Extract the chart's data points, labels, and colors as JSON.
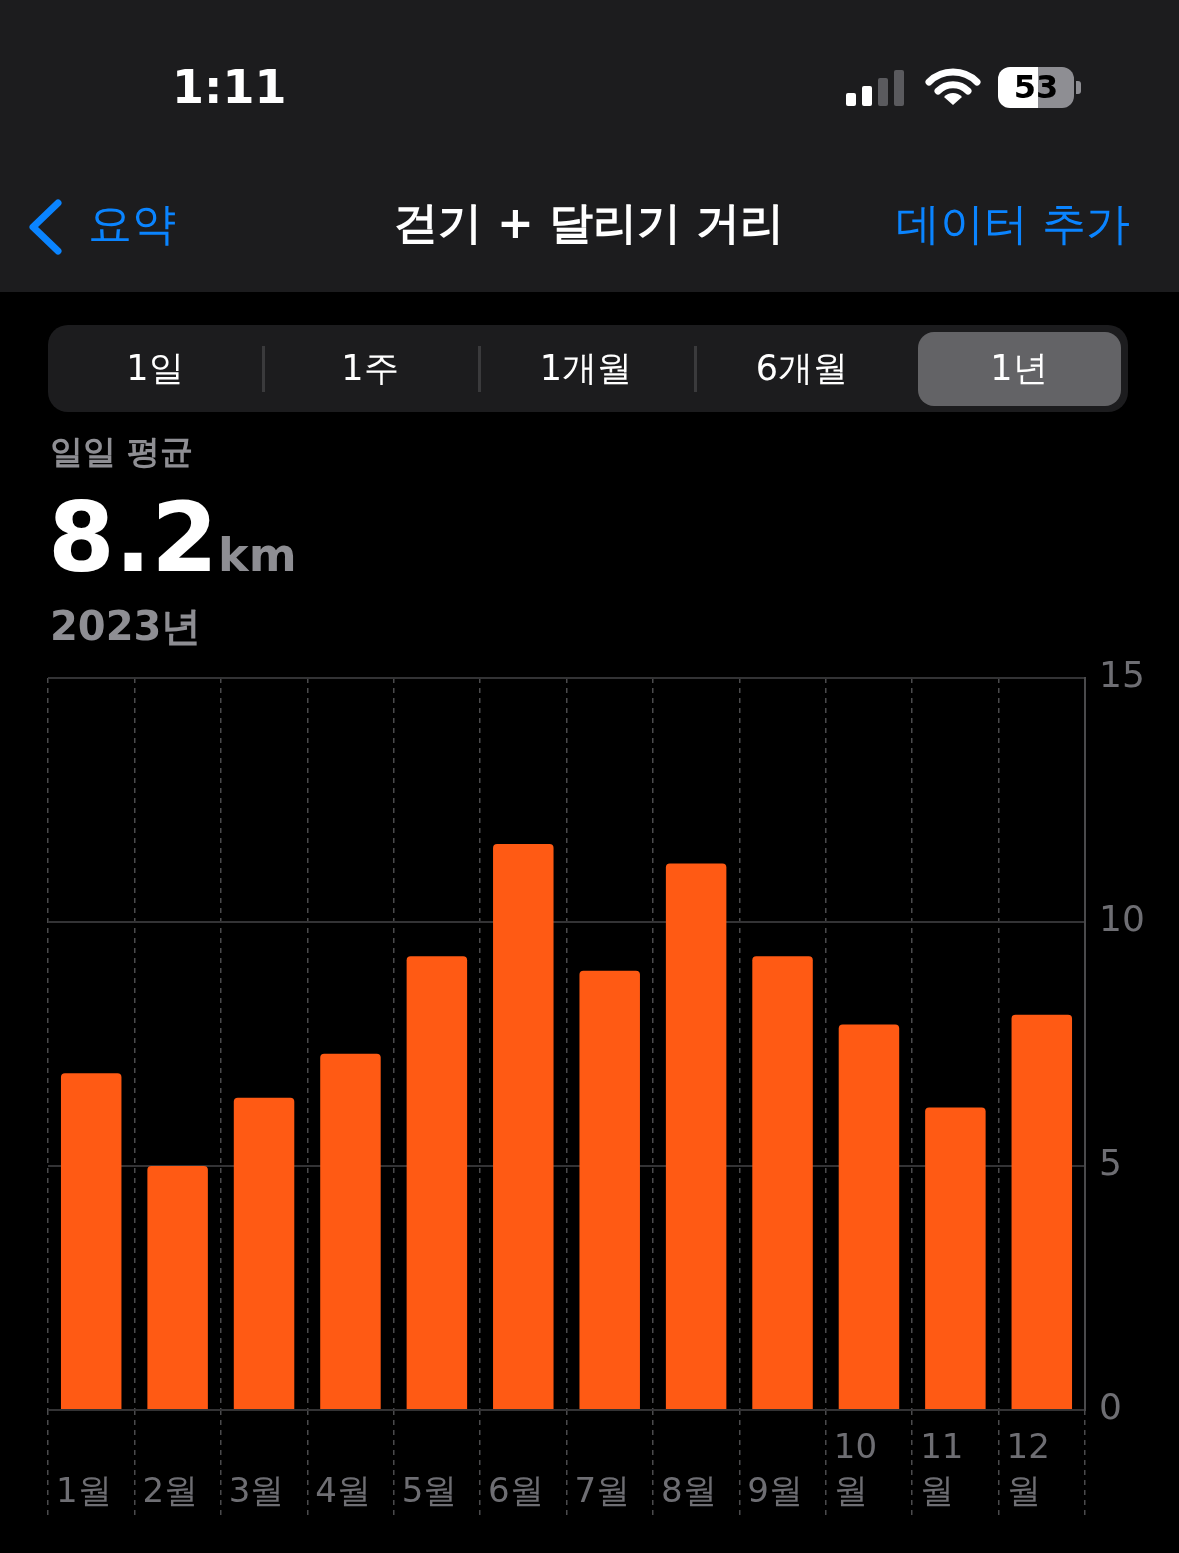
{
  "chart_data": {
    "type": "bar",
    "title": "걷기 + 달리기 거리",
    "categories": [
      "1월",
      "2월",
      "3월",
      "4월",
      "5월",
      "6월",
      "7월",
      "8월",
      "9월",
      "10월",
      "11월",
      "12월"
    ],
    "values": [
      6.9,
      5.0,
      6.4,
      7.3,
      9.3,
      11.6,
      9.0,
      11.2,
      9.3,
      7.9,
      6.2,
      8.1
    ],
    "color": "#ff5a14",
    "ylim": [
      0,
      15
    ],
    "yticks": [
      0,
      5,
      10,
      15
    ],
    "grid": true,
    "annotations": [
      "1:11",
      "53",
      "요약",
      "데이터 추가",
      "1일",
      "1주",
      "1개월",
      "6개월",
      "1년",
      "일일 평균",
      "8.2km",
      "2023년"
    ]
  }
}
